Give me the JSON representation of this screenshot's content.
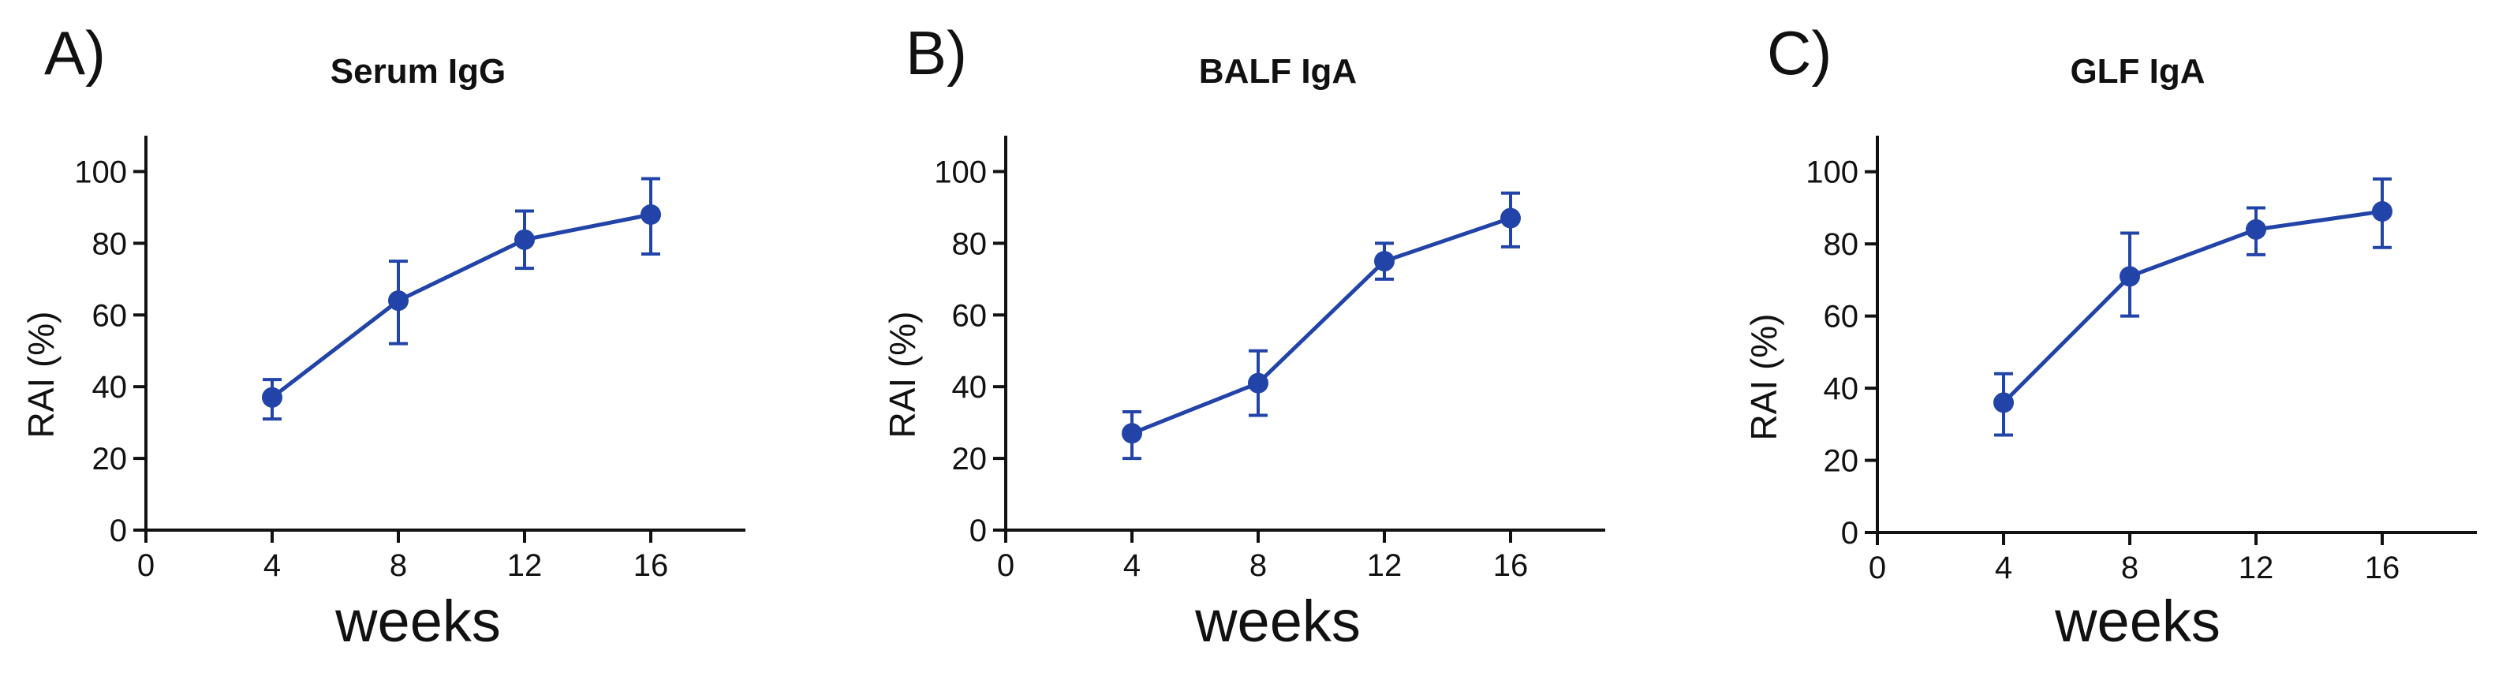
{
  "chart_data": [
    {
      "panel_label": "A)",
      "type": "line",
      "title": "Serum IgG",
      "xlabel": "weeks",
      "ylabel": "RAI (%)",
      "xlim": [
        0,
        19
      ],
      "ylim": [
        0,
        110
      ],
      "xticks": [
        0,
        4,
        8,
        12,
        16
      ],
      "yticks": [
        0,
        20,
        40,
        60,
        80,
        100
      ],
      "series": [
        {
          "name": "RAI",
          "color": "#2244a8",
          "x": [
            4,
            8,
            12,
            16
          ],
          "values": [
            37,
            64,
            81,
            88
          ],
          "error_low": [
            31,
            52,
            73,
            77
          ],
          "error_high": [
            42,
            75,
            89,
            98
          ]
        }
      ]
    },
    {
      "panel_label": "B)",
      "type": "line",
      "title": "BALF IgA",
      "xlabel": "weeks",
      "ylabel": "RAI (%)",
      "xlim": [
        0,
        19
      ],
      "ylim": [
        0,
        110
      ],
      "xticks": [
        0,
        4,
        8,
        12,
        16
      ],
      "yticks": [
        0,
        20,
        40,
        60,
        80,
        100
      ],
      "series": [
        {
          "name": "RAI",
          "color": "#2244a8",
          "x": [
            4,
            8,
            12,
            16
          ],
          "values": [
            27,
            41,
            75,
            87
          ],
          "error_low": [
            20,
            32,
            70,
            79
          ],
          "error_high": [
            33,
            50,
            80,
            94
          ]
        }
      ]
    },
    {
      "panel_label": "C)",
      "type": "line",
      "title": "GLF IgA",
      "xlabel": "weeks",
      "ylabel": "RAI (%)",
      "xlim": [
        0,
        19
      ],
      "ylim": [
        0,
        110
      ],
      "xticks": [
        0,
        4,
        8,
        12,
        16
      ],
      "yticks": [
        0,
        20,
        40,
        60,
        80,
        100
      ],
      "series": [
        {
          "name": "RAI",
          "color": "#2244a8",
          "x": [
            4,
            8,
            12,
            16
          ],
          "values": [
            36,
            71,
            84,
            89
          ],
          "error_low": [
            27,
            60,
            77,
            79
          ],
          "error_high": [
            44,
            83,
            90,
            98
          ]
        }
      ]
    }
  ]
}
